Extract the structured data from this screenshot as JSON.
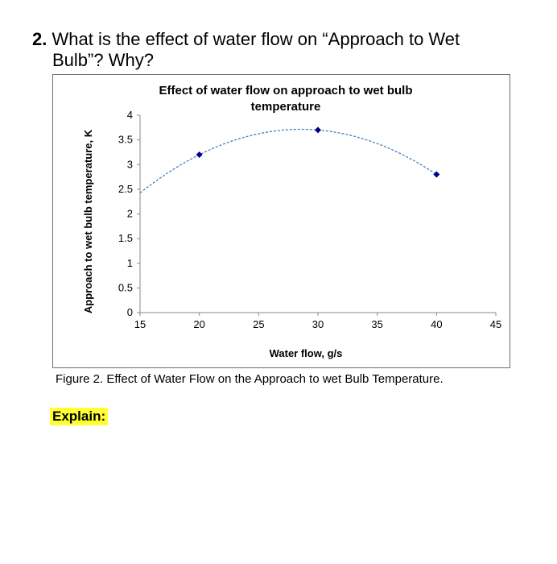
{
  "question": {
    "number": "2.",
    "line1": "What is the effect of water flow on “Approach to Wet",
    "line2": "Bulb”?  Why?"
  },
  "chart_data": {
    "type": "scatter",
    "title_lines": [
      "Effect of water flow on approach to wet bulb",
      "temperature"
    ],
    "xlabel": "Water flow, g/s",
    "ylabel": "Approach to wet bulb temperature, K",
    "xlim": [
      15,
      45
    ],
    "ylim": [
      0,
      4
    ],
    "xticks": [
      15,
      20,
      25,
      30,
      35,
      40,
      45
    ],
    "yticks": [
      0,
      0.5,
      1,
      1.5,
      2,
      2.5,
      3,
      3.5,
      4
    ],
    "series": [
      {
        "x": [
          20,
          30,
          40
        ],
        "y": [
          3.2,
          3.7,
          2.8
        ],
        "color": "#00008b",
        "marker": "diamond"
      }
    ],
    "trendline": {
      "type": "polynomial-2",
      "color": "#4a7fc1",
      "style": "dashed",
      "x_range": [
        15,
        40
      ]
    },
    "grid": false,
    "legend": "none"
  },
  "caption": "Figure 2. Effect of Water Flow on the Approach to wet Bulb Temperature.",
  "explain_label": "Explain:"
}
